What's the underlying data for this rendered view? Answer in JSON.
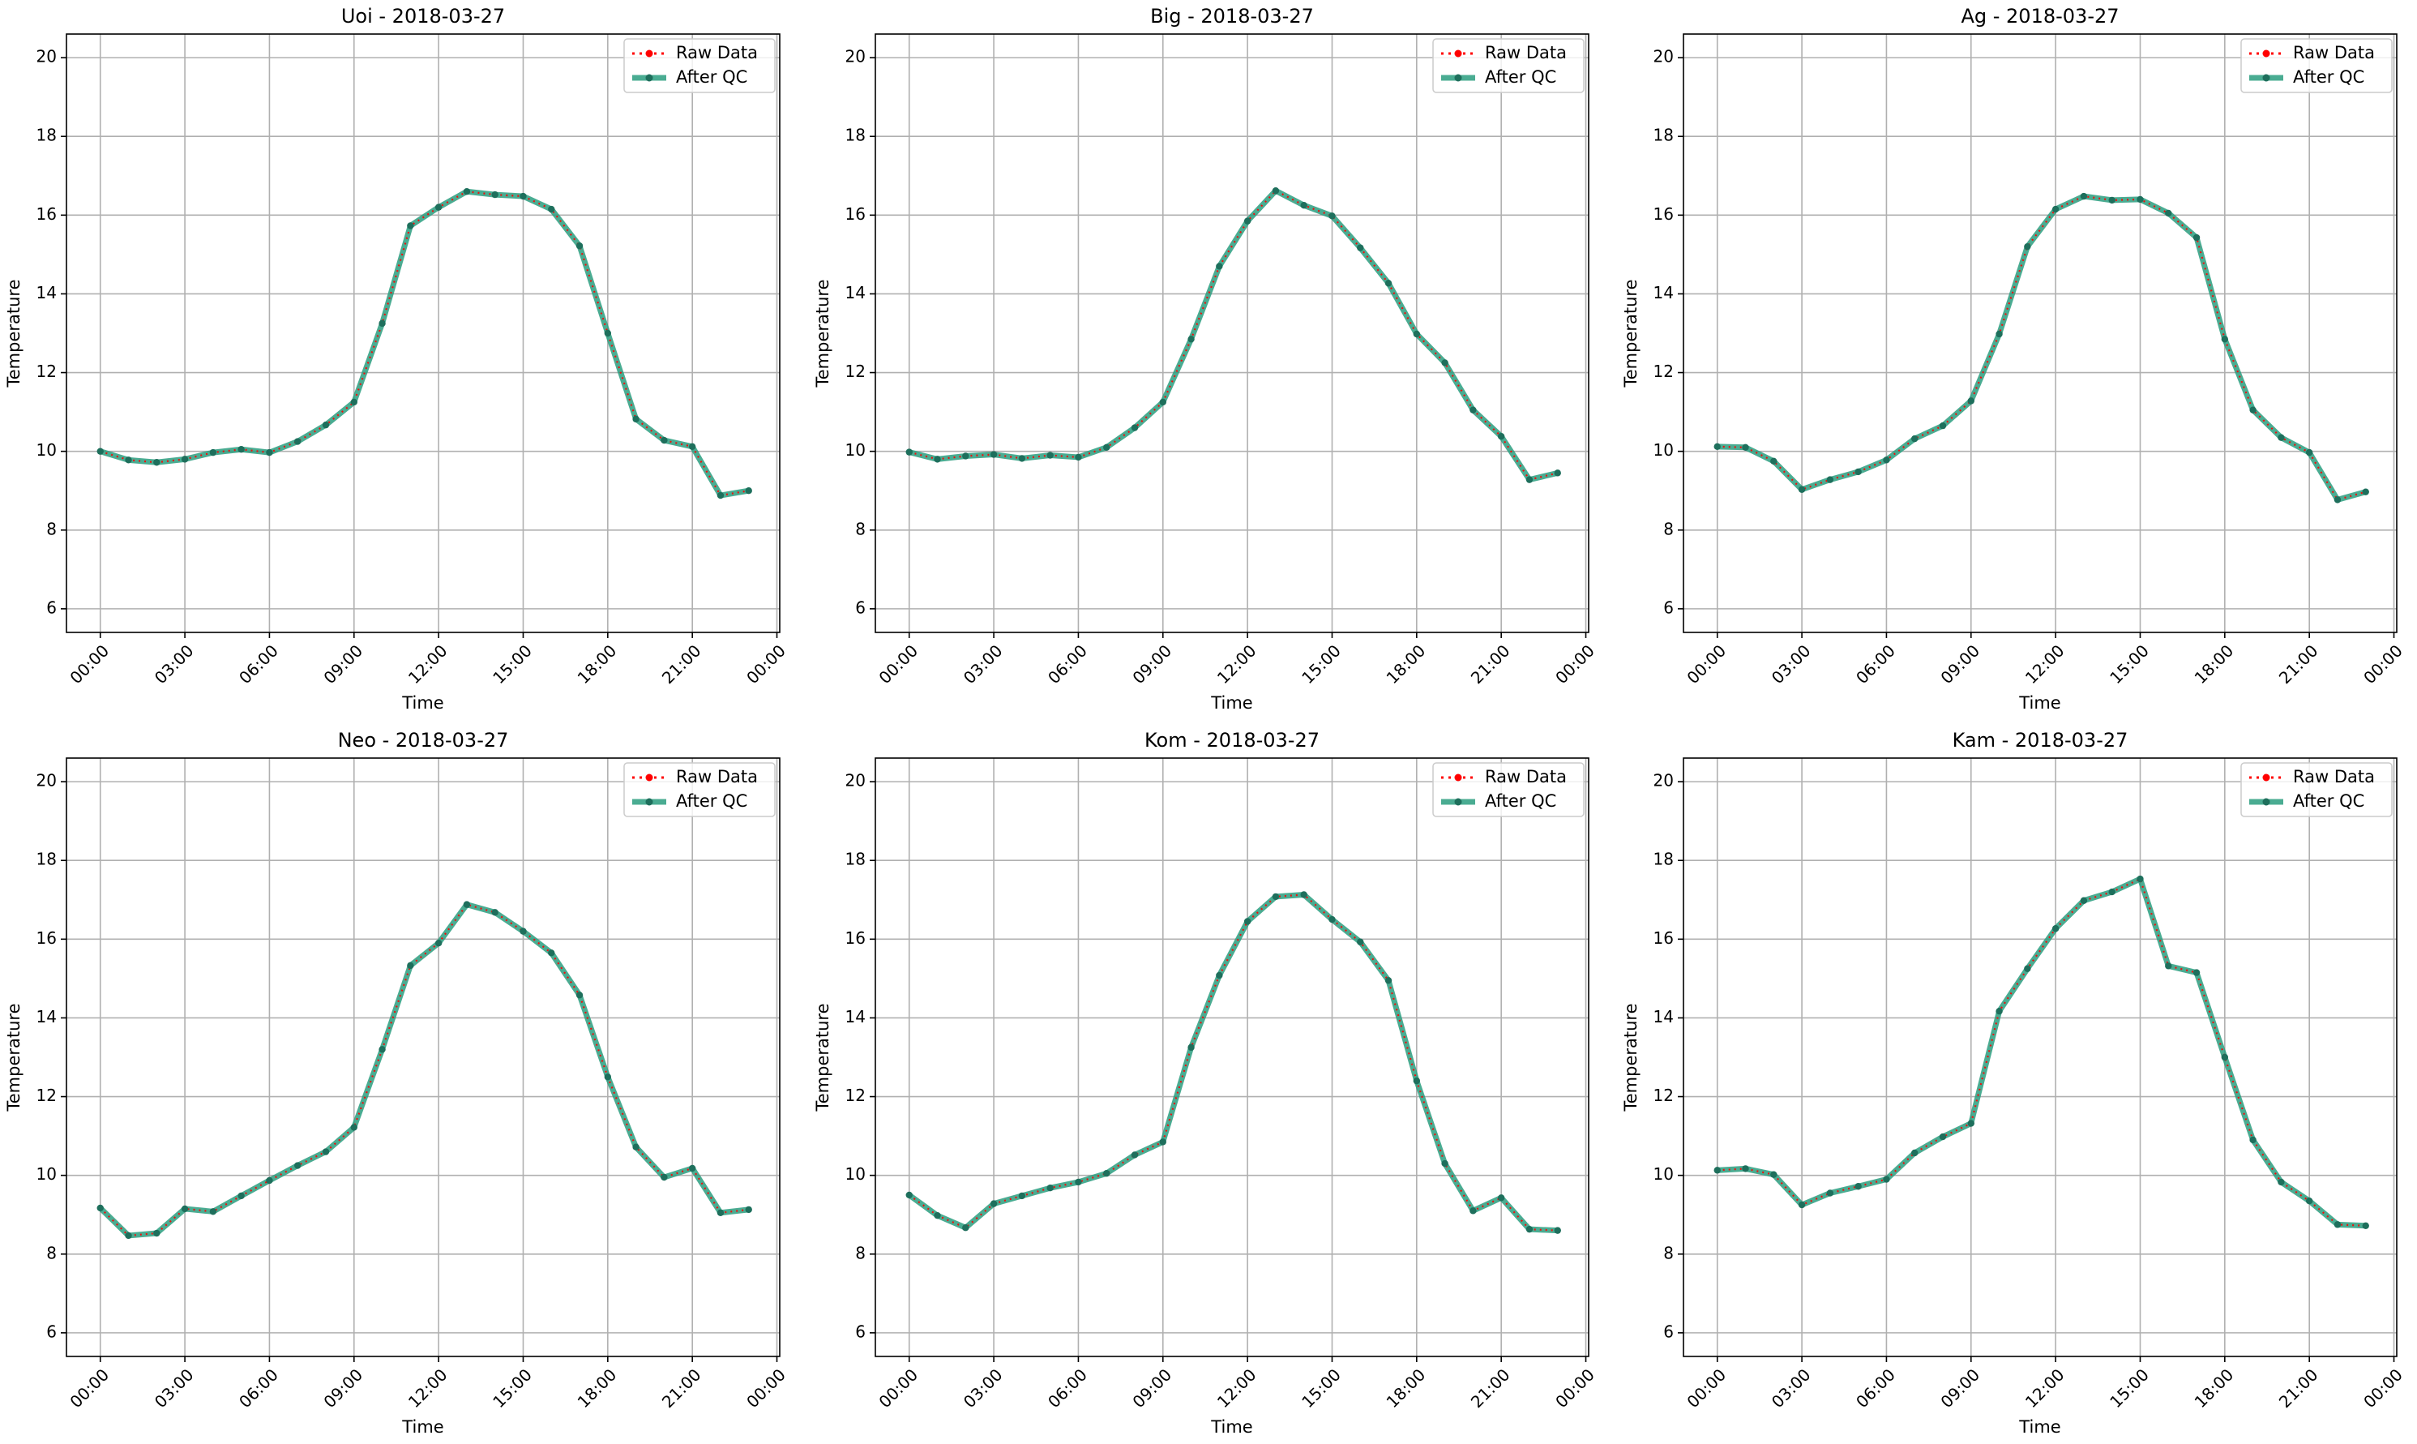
{
  "colors": {
    "raw": "#ff0000",
    "qc": "#2a9d7f",
    "qc_marker": "#1e6f5c",
    "grid": "#b0b0b0"
  },
  "chart_data": [
    {
      "type": "line",
      "title": "Uoi - 2018-03-27",
      "xlabel": "Time",
      "ylabel": "Temperature",
      "ylim": [
        5.4,
        20.6
      ],
      "yticks": [
        6,
        8,
        10,
        12,
        14,
        16,
        18,
        20
      ],
      "xticks": [
        "00:00",
        "03:00",
        "06:00",
        "09:00",
        "12:00",
        "15:00",
        "18:00",
        "21:00",
        "00:00"
      ],
      "grid": true,
      "legend": "top-right",
      "series": [
        {
          "name": "Raw Data",
          "values": [
            10.0,
            9.78,
            9.72,
            9.8,
            9.97,
            10.05,
            9.97,
            10.25,
            10.67,
            11.25,
            13.25,
            15.73,
            16.2,
            16.6,
            16.52,
            16.48,
            16.15,
            15.22,
            13.0,
            10.82,
            10.28,
            10.12,
            8.88,
            9.0
          ]
        },
        {
          "name": "After QC",
          "values": [
            10.0,
            9.78,
            9.72,
            9.8,
            9.97,
            10.05,
            9.97,
            10.25,
            10.67,
            11.25,
            13.25,
            15.73,
            16.2,
            16.6,
            16.52,
            16.48,
            16.15,
            15.22,
            13.0,
            10.82,
            10.28,
            10.12,
            8.88,
            9.0
          ]
        }
      ]
    },
    {
      "type": "line",
      "title": "Big - 2018-03-27",
      "xlabel": "Time",
      "ylabel": "Temperature",
      "ylim": [
        5.4,
        20.6
      ],
      "yticks": [
        6,
        8,
        10,
        12,
        14,
        16,
        18,
        20
      ],
      "xticks": [
        "00:00",
        "03:00",
        "06:00",
        "09:00",
        "12:00",
        "15:00",
        "18:00",
        "21:00",
        "00:00"
      ],
      "grid": true,
      "legend": "top-right",
      "series": [
        {
          "name": "Raw Data",
          "values": [
            9.98,
            9.8,
            9.88,
            9.92,
            9.82,
            9.9,
            9.85,
            10.1,
            10.6,
            11.25,
            12.85,
            14.7,
            15.85,
            16.62,
            16.25,
            15.98,
            15.17,
            14.27,
            12.98,
            12.25,
            11.05,
            10.38,
            9.28,
            9.45
          ]
        },
        {
          "name": "After QC",
          "values": [
            9.98,
            9.8,
            9.88,
            9.92,
            9.82,
            9.9,
            9.85,
            10.1,
            10.6,
            11.25,
            12.85,
            14.7,
            15.85,
            16.62,
            16.25,
            15.98,
            15.17,
            14.27,
            12.98,
            12.25,
            11.05,
            10.38,
            9.28,
            9.45
          ]
        }
      ]
    },
    {
      "type": "line",
      "title": "Ag - 2018-03-27",
      "xlabel": "Time",
      "ylabel": "Temperature",
      "ylim": [
        5.4,
        20.6
      ],
      "yticks": [
        6,
        8,
        10,
        12,
        14,
        16,
        18,
        20
      ],
      "xticks": [
        "00:00",
        "03:00",
        "06:00",
        "09:00",
        "12:00",
        "15:00",
        "18:00",
        "21:00",
        "00:00"
      ],
      "grid": true,
      "legend": "top-right",
      "series": [
        {
          "name": "Raw Data",
          "values": [
            10.12,
            10.1,
            9.75,
            9.03,
            9.28,
            9.48,
            9.78,
            10.32,
            10.65,
            11.28,
            12.98,
            15.2,
            16.15,
            16.48,
            16.38,
            16.4,
            16.05,
            15.43,
            12.85,
            11.05,
            10.35,
            9.97,
            8.77,
            8.97
          ]
        },
        {
          "name": "After QC",
          "values": [
            10.12,
            10.1,
            9.75,
            9.03,
            9.28,
            9.48,
            9.78,
            10.32,
            10.65,
            11.28,
            12.98,
            15.2,
            16.15,
            16.48,
            16.38,
            16.4,
            16.05,
            15.43,
            12.85,
            11.05,
            10.35,
            9.97,
            8.77,
            8.97
          ]
        }
      ]
    },
    {
      "type": "line",
      "title": "Neo - 2018-03-27",
      "xlabel": "Time",
      "ylabel": "Temperature",
      "ylim": [
        5.4,
        20.6
      ],
      "yticks": [
        6,
        8,
        10,
        12,
        14,
        16,
        18,
        20
      ],
      "xticks": [
        "00:00",
        "03:00",
        "06:00",
        "09:00",
        "12:00",
        "15:00",
        "18:00",
        "21:00",
        "00:00"
      ],
      "grid": true,
      "legend": "top-right",
      "series": [
        {
          "name": "Raw Data",
          "values": [
            9.17,
            8.47,
            8.53,
            9.15,
            9.08,
            9.48,
            9.87,
            10.25,
            10.6,
            11.22,
            13.2,
            15.33,
            15.9,
            16.88,
            16.68,
            16.2,
            15.65,
            14.58,
            12.5,
            10.72,
            9.95,
            10.18,
            9.05,
            9.13
          ]
        },
        {
          "name": "After QC",
          "values": [
            9.17,
            8.47,
            8.53,
            9.15,
            9.08,
            9.48,
            9.87,
            10.25,
            10.6,
            11.22,
            13.2,
            15.33,
            15.9,
            16.88,
            16.68,
            16.2,
            15.65,
            14.58,
            12.5,
            10.72,
            9.95,
            10.18,
            9.05,
            9.13
          ]
        }
      ]
    },
    {
      "type": "line",
      "title": "Kom - 2018-03-27",
      "xlabel": "Time",
      "ylabel": "Temperature",
      "ylim": [
        5.4,
        20.6
      ],
      "yticks": [
        6,
        8,
        10,
        12,
        14,
        16,
        18,
        20
      ],
      "xticks": [
        "00:00",
        "03:00",
        "06:00",
        "09:00",
        "12:00",
        "15:00",
        "18:00",
        "21:00",
        "00:00"
      ],
      "grid": true,
      "legend": "top-right",
      "series": [
        {
          "name": "Raw Data",
          "values": [
            9.5,
            8.98,
            8.67,
            9.28,
            9.48,
            9.68,
            9.83,
            10.05,
            10.52,
            10.85,
            13.25,
            15.08,
            16.45,
            17.08,
            17.13,
            16.5,
            15.93,
            14.95,
            12.4,
            10.3,
            9.1,
            9.43,
            8.63,
            8.6
          ]
        },
        {
          "name": "After QC",
          "values": [
            9.5,
            8.98,
            8.67,
            9.28,
            9.48,
            9.68,
            9.83,
            10.05,
            10.52,
            10.85,
            13.25,
            15.08,
            16.45,
            17.08,
            17.13,
            16.5,
            15.93,
            14.95,
            12.4,
            10.3,
            9.1,
            9.43,
            8.63,
            8.6
          ]
        }
      ]
    },
    {
      "type": "line",
      "title": "Kam - 2018-03-27",
      "xlabel": "Time",
      "ylabel": "Temperature",
      "ylim": [
        5.4,
        20.6
      ],
      "yticks": [
        6,
        8,
        10,
        12,
        14,
        16,
        18,
        20
      ],
      "xticks": [
        "00:00",
        "03:00",
        "06:00",
        "09:00",
        "12:00",
        "15:00",
        "18:00",
        "21:00",
        "00:00"
      ],
      "grid": true,
      "legend": "top-right",
      "series": [
        {
          "name": "Raw Data",
          "values": [
            10.13,
            10.17,
            10.02,
            9.25,
            9.55,
            9.72,
            9.9,
            10.57,
            10.98,
            11.32,
            14.17,
            15.25,
            16.27,
            16.98,
            17.2,
            17.53,
            15.32,
            15.15,
            13.0,
            10.9,
            9.83,
            9.35,
            8.75,
            8.72
          ]
        },
        {
          "name": "After QC",
          "values": [
            10.13,
            10.17,
            10.02,
            9.25,
            9.55,
            9.72,
            9.9,
            10.57,
            10.98,
            11.32,
            14.17,
            15.25,
            16.27,
            16.98,
            17.2,
            17.53,
            15.32,
            15.15,
            13.0,
            10.9,
            9.83,
            9.35,
            8.75,
            8.72
          ]
        }
      ]
    }
  ]
}
